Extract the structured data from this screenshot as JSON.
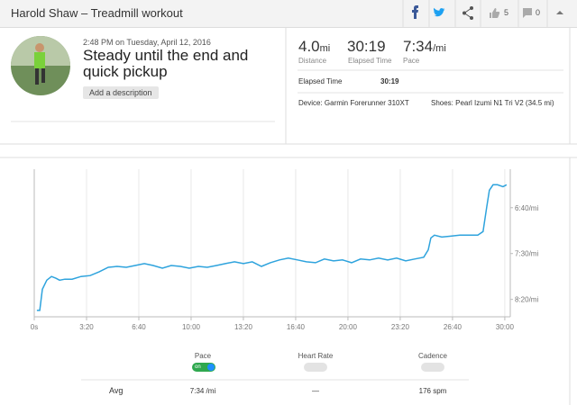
{
  "header": {
    "title": "Harold Shaw – Treadmill workout",
    "likes": 5,
    "comments": 0
  },
  "activity": {
    "datetime": "2:48 PM on Tuesday, April 12, 2016",
    "name": "Steady until the end and quick pickup",
    "button": "Add a description"
  },
  "stats": [
    {
      "value": "4.0",
      "unit": "mi",
      "label": "Distance"
    },
    {
      "value": "30:19",
      "label": "Elapsed Time"
    },
    {
      "value": "7:34",
      "unit": "/mi",
      "label": "Pace"
    }
  ],
  "details": {
    "elapsed_label": "Elapsed Time",
    "elapsed_value": "30:19",
    "device": "Device: Garmin Forerunner 310XT",
    "shoes": "Shoes: Pearl Izumi N1 Tri V2 (34.5 mi)"
  },
  "chart_data": {
    "type": "line",
    "x": [
      10,
      21,
      31,
      48,
      66,
      83,
      97,
      117,
      145,
      179,
      214,
      248,
      283,
      317,
      352,
      386,
      421,
      455,
      490,
      524,
      559,
      593,
      628,
      662,
      697,
      731,
      766,
      800,
      834,
      869,
      903,
      938,
      972,
      1007,
      1041,
      1076,
      1110,
      1145,
      1179,
      1214,
      1248,
      1283,
      1317,
      1352,
      1386,
      1421,
      1455,
      1490,
      1507,
      1517,
      1531,
      1559,
      1593,
      1628,
      1662,
      1697,
      1717,
      1731,
      1741,
      1755,
      1772,
      1793,
      1807
    ],
    "series": [
      {
        "color": "#2ea3dd",
        "values": [
          512,
          512,
          489,
          479,
          475,
          477,
          479,
          478,
          478,
          475,
          474,
          470,
          465,
          464,
          465,
          463,
          461,
          463,
          466,
          463,
          464,
          466,
          464,
          465,
          463,
          461,
          459,
          461,
          459,
          464,
          460,
          457,
          455,
          457,
          459,
          460,
          456,
          458,
          457,
          460,
          456,
          457,
          455,
          457,
          455,
          458,
          456,
          454,
          446,
          433,
          430,
          432,
          431,
          430,
          430,
          430,
          426,
          399,
          381,
          375,
          375,
          377,
          375
        ]
      }
    ],
    "xlim": [
      0,
      1821
    ],
    "xticks": [
      {
        "value": 0,
        "label": "0s"
      },
      {
        "value": 200,
        "label": "3:20"
      },
      {
        "value": 400,
        "label": "6:40"
      },
      {
        "value": 600,
        "label": "10:00"
      },
      {
        "value": 800,
        "label": "13:20"
      },
      {
        "value": 1000,
        "label": "16:40"
      },
      {
        "value": 1200,
        "label": "20:00"
      },
      {
        "value": 1400,
        "label": "23:20"
      },
      {
        "value": 1600,
        "label": "26:40"
      },
      {
        "value": 1800,
        "label": "30:00"
      }
    ],
    "ylim": [
      519,
      358
    ],
    "yticks": [
      {
        "value": 400,
        "label": "6:40/mi"
      },
      {
        "value": 450,
        "label": "7:30/mi"
      },
      {
        "value": 500,
        "label": "8:20/mi"
      }
    ],
    "grid": true
  },
  "toggles": [
    {
      "label": "Pace",
      "state": "on"
    },
    {
      "label": "Heart Rate"
    },
    {
      "label": "Cadence"
    }
  ],
  "summary": {
    "label": "Avg",
    "values": [
      "7:34 /mi",
      "—",
      "176 spm"
    ]
  }
}
